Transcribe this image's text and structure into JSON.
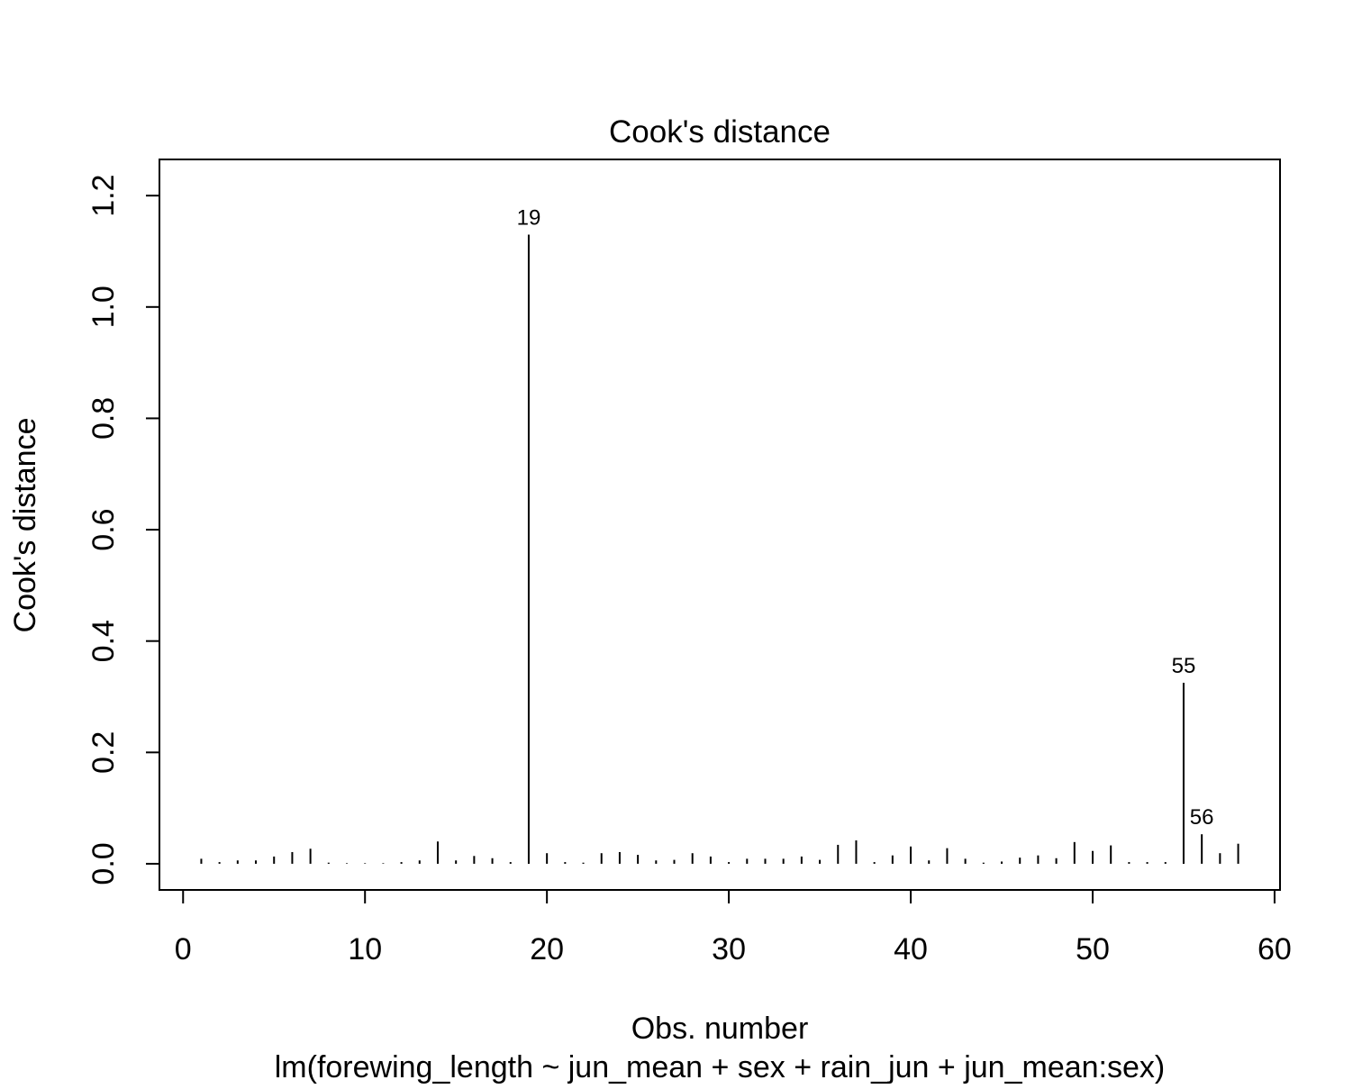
{
  "chart_data": {
    "type": "bar",
    "title": "Cook's distance",
    "xlabel": "Obs. number",
    "sub": "lm(forewing_length ~ jun_mean + sex + rain_jun + jun_mean:sex)",
    "ylabel": "Cook's distance",
    "xlim": [
      -1.3,
      60.3
    ],
    "ylim": [
      -0.047,
      1.265
    ],
    "x_ticks": [
      0,
      10,
      20,
      30,
      40,
      50,
      60
    ],
    "y_ticks": [
      0.0,
      0.2,
      0.4,
      0.6,
      0.8,
      1.0,
      1.2
    ],
    "x_tick_labels": [
      "0",
      "10",
      "20",
      "30",
      "40",
      "50",
      "60"
    ],
    "y_tick_labels": [
      "0.0",
      "0.2",
      "0.4",
      "0.6",
      "0.8",
      "1.0",
      "1.2"
    ],
    "x": [
      1,
      2,
      3,
      4,
      5,
      6,
      7,
      8,
      9,
      10,
      11,
      12,
      13,
      14,
      15,
      16,
      17,
      18,
      19,
      20,
      21,
      22,
      23,
      24,
      25,
      26,
      27,
      28,
      29,
      30,
      31,
      32,
      33,
      34,
      35,
      36,
      37,
      38,
      39,
      40,
      41,
      42,
      43,
      44,
      45,
      46,
      47,
      48,
      49,
      50,
      51,
      52,
      53,
      54,
      55,
      56,
      57,
      58
    ],
    "values": [
      0.009,
      0.003,
      0.006,
      0.006,
      0.013,
      0.021,
      0.027,
      0.002,
      0.001,
      0.001,
      0.001,
      0.003,
      0.006,
      0.04,
      0.006,
      0.014,
      0.01,
      0.003,
      1.13,
      0.019,
      0.003,
      0.002,
      0.019,
      0.021,
      0.016,
      0.006,
      0.007,
      0.019,
      0.013,
      0.003,
      0.009,
      0.009,
      0.009,
      0.013,
      0.007,
      0.034,
      0.042,
      0.003,
      0.015,
      0.031,
      0.006,
      0.028,
      0.009,
      0.002,
      0.004,
      0.011,
      0.015,
      0.01,
      0.039,
      0.023,
      0.033,
      0.003,
      0.003,
      0.003,
      0.325,
      0.053,
      0.019,
      0.036
    ],
    "labels": [
      {
        "obs": 19,
        "text": "19"
      },
      {
        "obs": 55,
        "text": "55"
      },
      {
        "obs": 56,
        "text": "56"
      }
    ]
  }
}
